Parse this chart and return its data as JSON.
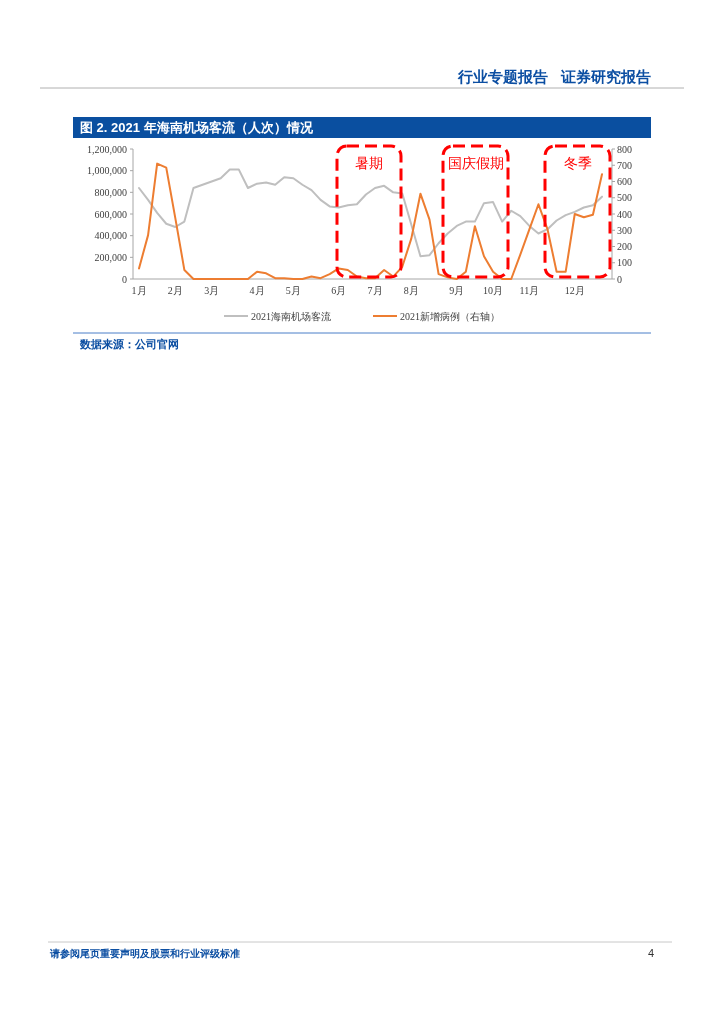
{
  "chart_data": {
    "type": "line",
    "title": "图 2. 2021 年海南机场客流（人次）情况",
    "categories": [
      "1月",
      null,
      null,
      null,
      "2月",
      null,
      null,
      null,
      "3月",
      null,
      null,
      null,
      null,
      "4月",
      null,
      null,
      null,
      "5月",
      null,
      null,
      null,
      null,
      "6月",
      null,
      null,
      null,
      "7月",
      null,
      null,
      null,
      "8月",
      null,
      null,
      null,
      null,
      "9月",
      null,
      null,
      null,
      "10月",
      null,
      null,
      null,
      "11月",
      null,
      null,
      null,
      null,
      "12月",
      null,
      null,
      null
    ],
    "ylim": [
      0,
      1200000
    ],
    "yticks": [
      {
        "value": 0,
        "label": "0"
      },
      {
        "value": 200000,
        "label": "200,000"
      },
      {
        "value": 400000,
        "label": "400,000"
      },
      {
        "value": 600000,
        "label": "600,000"
      },
      {
        "value": 800000,
        "label": "800,000"
      },
      {
        "value": 1000000,
        "label": "1,000,000"
      },
      {
        "value": 1200000,
        "label": "1,200,000"
      }
    ],
    "y2lim": [
      0,
      800
    ],
    "y2ticks": [
      0,
      100,
      200,
      300,
      400,
      500,
      600,
      700,
      800
    ],
    "series": [
      {
        "name": "2021海南机场客流",
        "color": "#bfbfbf",
        "values": [
          840000,
          730000,
          610000,
          510000,
          480000,
          530000,
          840000,
          870000,
          900000,
          930000,
          1010000,
          1010000,
          840000,
          880000,
          890000,
          870000,
          940000,
          930000,
          870000,
          820000,
          730000,
          670000,
          660000,
          680000,
          690000,
          780000,
          840000,
          860000,
          800000,
          790000,
          500000,
          210000,
          220000,
          330000,
          420000,
          490000,
          530000,
          530000,
          700000,
          710000,
          530000,
          630000,
          580000,
          490000,
          420000,
          460000,
          540000,
          590000,
          620000,
          660000,
          680000,
          760000
        ]
      },
      {
        "name": "2021新增病例（右轴）",
        "color": "#ed7d31",
        "axis": "y2",
        "values": [
          65,
          270,
          710,
          685,
          375,
          55,
          0,
          0,
          0,
          0,
          0,
          0,
          0,
          45,
          35,
          5,
          5,
          0,
          0,
          15,
          5,
          30,
          65,
          55,
          15,
          5,
          5,
          55,
          15,
          75,
          250,
          525,
          365,
          30,
          10,
          0,
          45,
          325,
          140,
          45,
          0,
          0,
          150,
          305,
          460,
          305,
          45,
          45,
          400,
          380,
          395,
          645
        ]
      }
    ],
    "legend": "bottom",
    "grid": false,
    "line_style": "solid",
    "annotations": [
      "数据来源：公司官网",
      "行业专题报告",
      "证券研究报告",
      "请参阅尾页重要声明及股票和行业评级标准",
      "4",
      "暑期",
      "国庆假期",
      "冬季"
    ]
  }
}
